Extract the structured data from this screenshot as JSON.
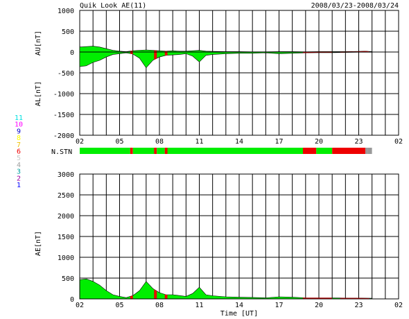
{
  "header": {
    "title": "Quik Look AE(11)",
    "date_range": "2008/03/23-2008/03/24"
  },
  "colors": {
    "green": "#00ee00",
    "red": "#ee0000",
    "gray": "#999999"
  },
  "station_legend": [
    {
      "label": "11",
      "color": "#00e0e0"
    },
    {
      "label": "10",
      "color": "#ff00ff"
    },
    {
      "label": "9",
      "color": "#0000cc"
    },
    {
      "label": "8",
      "color": "#ffff00"
    },
    {
      "label": "7",
      "color": "#f0c000"
    },
    {
      "label": "6",
      "color": "#ee0000"
    },
    {
      "label": "5",
      "color": "#c8c8c8"
    },
    {
      "label": "4",
      "color": "#a0a0a0"
    },
    {
      "label": "3",
      "color": "#00a0a0"
    },
    {
      "label": "2",
      "color": "#a000a0"
    },
    {
      "label": "1",
      "color": "#0000ff"
    }
  ],
  "nstn_label": "N.STN",
  "chart_data": [
    {
      "type": "area",
      "ylabel_top": "AU[nT]",
      "ylabel_bottom": "AL[nT]",
      "xlim": [
        2,
        26
      ],
      "ylim": [
        -2000,
        1000
      ],
      "ytick_labels": [
        "1000",
        "500",
        "0",
        "-500",
        "-1000",
        "-1500",
        "-2000"
      ],
      "xtick_labels": [
        "02",
        "05",
        "08",
        "11",
        "14",
        "17",
        "20",
        "23",
        "02"
      ],
      "au": [
        [
          2.0,
          120
        ],
        [
          2.5,
          130
        ],
        [
          3.0,
          140
        ],
        [
          3.5,
          120
        ],
        [
          4.0,
          80
        ],
        [
          4.5,
          40
        ],
        [
          5.0,
          20
        ],
        [
          5.5,
          10
        ],
        [
          6.0,
          30
        ],
        [
          6.5,
          40
        ],
        [
          7.0,
          50
        ],
        [
          7.5,
          40
        ],
        [
          8.0,
          30
        ],
        [
          8.5,
          20
        ],
        [
          9.0,
          30
        ],
        [
          9.5,
          20
        ],
        [
          10.0,
          20
        ],
        [
          10.5,
          30
        ],
        [
          11.0,
          40
        ],
        [
          11.5,
          20
        ],
        [
          12.0,
          15
        ],
        [
          13.0,
          10
        ],
        [
          14.0,
          10
        ],
        [
          15.0,
          5
        ],
        [
          16.0,
          5
        ],
        [
          17.0,
          10
        ],
        [
          18.0,
          10
        ],
        [
          19.0,
          5
        ],
        [
          20.0,
          10
        ],
        [
          21.0,
          10
        ],
        [
          22.0,
          10
        ],
        [
          23.0,
          15
        ],
        [
          23.5,
          20
        ],
        [
          24.0,
          10
        ]
      ],
      "al": [
        [
          2.0,
          -350
        ],
        [
          2.5,
          -330
        ],
        [
          3.0,
          -250
        ],
        [
          3.5,
          -200
        ],
        [
          4.0,
          -120
        ],
        [
          4.5,
          -60
        ],
        [
          5.0,
          -40
        ],
        [
          5.5,
          -20
        ],
        [
          6.0,
          -50
        ],
        [
          6.5,
          -150
        ],
        [
          7.0,
          -380
        ],
        [
          7.5,
          -200
        ],
        [
          8.0,
          -120
        ],
        [
          8.5,
          -80
        ],
        [
          9.0,
          -70
        ],
        [
          9.5,
          -60
        ],
        [
          10.0,
          -40
        ],
        [
          10.5,
          -100
        ],
        [
          11.0,
          -240
        ],
        [
          11.5,
          -80
        ],
        [
          12.0,
          -60
        ],
        [
          13.0,
          -40
        ],
        [
          14.0,
          -30
        ],
        [
          15.0,
          -30
        ],
        [
          16.0,
          -20
        ],
        [
          17.0,
          -40
        ],
        [
          18.0,
          -30
        ],
        [
          19.0,
          -20
        ],
        [
          20.0,
          -15
        ],
        [
          21.0,
          -15
        ],
        [
          22.0,
          -10
        ],
        [
          23.0,
          -5
        ],
        [
          24.0,
          -5
        ]
      ],
      "red_spans": [
        [
          5.8,
          6.0
        ],
        [
          7.6,
          7.8
        ],
        [
          8.4,
          8.6
        ],
        [
          18.8,
          21.0
        ],
        [
          21.6,
          23.8
        ]
      ]
    },
    {
      "type": "bar",
      "label": "N.STN",
      "xlim": [
        2,
        26
      ],
      "segments": [
        {
          "start": 2.0,
          "end": 5.8,
          "status": "green"
        },
        {
          "start": 5.8,
          "end": 6.0,
          "status": "red"
        },
        {
          "start": 6.0,
          "end": 7.6,
          "status": "green"
        },
        {
          "start": 7.6,
          "end": 7.8,
          "status": "red"
        },
        {
          "start": 7.8,
          "end": 8.4,
          "status": "green"
        },
        {
          "start": 8.4,
          "end": 8.6,
          "status": "red"
        },
        {
          "start": 8.6,
          "end": 18.8,
          "status": "green"
        },
        {
          "start": 18.8,
          "end": 19.8,
          "status": "red"
        },
        {
          "start": 19.8,
          "end": 21.0,
          "status": "green"
        },
        {
          "start": 21.0,
          "end": 23.5,
          "status": "red"
        },
        {
          "start": 23.5,
          "end": 23.7,
          "status": "gray"
        },
        {
          "start": 23.7,
          "end": 24.0,
          "status": "gray"
        }
      ]
    },
    {
      "type": "area",
      "ylabel": "AE[nT]",
      "xlabel": "Time [UT]",
      "xlim": [
        2,
        26
      ],
      "ylim": [
        0,
        3000
      ],
      "ytick_labels": [
        "3000",
        "2500",
        "2000",
        "1500",
        "1000",
        "500",
        "0"
      ],
      "xtick_labels": [
        "02",
        "05",
        "08",
        "11",
        "14",
        "17",
        "20",
        "23",
        "02"
      ],
      "ae": [
        [
          2.0,
          460
        ],
        [
          2.5,
          480
        ],
        [
          3.0,
          420
        ],
        [
          3.5,
          330
        ],
        [
          4.0,
          200
        ],
        [
          4.5,
          100
        ],
        [
          5.0,
          60
        ],
        [
          5.5,
          30
        ],
        [
          6.0,
          80
        ],
        [
          6.5,
          200
        ],
        [
          7.0,
          420
        ],
        [
          7.5,
          250
        ],
        [
          8.0,
          150
        ],
        [
          8.5,
          100
        ],
        [
          9.0,
          100
        ],
        [
          9.5,
          80
        ],
        [
          10.0,
          60
        ],
        [
          10.5,
          130
        ],
        [
          11.0,
          280
        ],
        [
          11.5,
          100
        ],
        [
          12.0,
          75
        ],
        [
          13.0,
          50
        ],
        [
          14.0,
          40
        ],
        [
          15.0,
          35
        ],
        [
          16.0,
          25
        ],
        [
          17.0,
          50
        ],
        [
          18.0,
          40
        ],
        [
          19.0,
          25
        ],
        [
          20.0,
          25
        ],
        [
          21.0,
          25
        ],
        [
          22.0,
          20
        ],
        [
          23.0,
          20
        ],
        [
          24.0,
          15
        ]
      ],
      "red_spans": [
        [
          5.8,
          6.0
        ],
        [
          7.6,
          7.8
        ],
        [
          8.4,
          8.6
        ],
        [
          18.8,
          21.0
        ],
        [
          21.6,
          23.8
        ]
      ]
    }
  ]
}
